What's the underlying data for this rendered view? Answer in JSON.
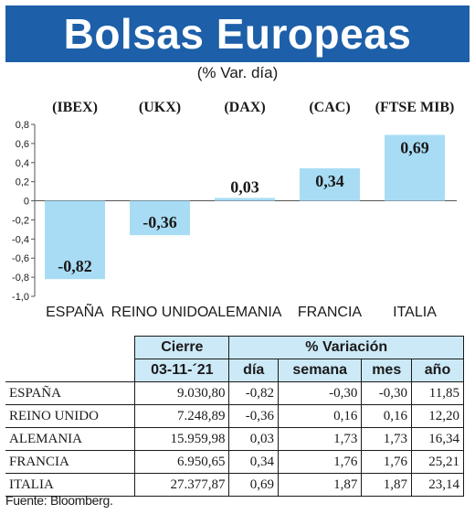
{
  "header": {
    "title": "Bolsas Europeas",
    "subtitle": "(% Var. día)"
  },
  "colors": {
    "banner": "#1d5fa8",
    "bar": "#a8dcf5",
    "table_header": "#cce9f7"
  },
  "chart_data": {
    "type": "bar",
    "title": "Bolsas Europeas",
    "subtitle": "(% Var. día)",
    "categories": [
      "ESPAÑA",
      "REINO UNIDO",
      "ALEMANIA",
      "FRANCIA",
      "ITALIA"
    ],
    "indices": [
      "(IBEX)",
      "(UKX)",
      "(DAX)",
      "(CAC)",
      "(FTSE MIB)"
    ],
    "values": [
      -0.82,
      -0.36,
      0.03,
      0.34,
      0.69
    ],
    "value_labels": [
      "-0,82",
      "-0,36",
      "0,03",
      "0,34",
      "0,69"
    ],
    "ylim": [
      -1.0,
      0.8
    ],
    "yticks": [
      0.8,
      0.6,
      0.4,
      0.2,
      0,
      -0.2,
      -0.4,
      -0.6,
      -0.8,
      -1.0
    ],
    "ytick_labels": [
      "0,8",
      "0,6",
      "0,4",
      "0,2",
      "0",
      "-0,2",
      "-0,4",
      "-0,6",
      "-0,8",
      "-1,0"
    ],
    "grid": false,
    "legend": "none"
  },
  "table": {
    "header_cierre": "Cierre",
    "header_variacion": "% Variación",
    "date": "03-11-´21",
    "sub_headers": [
      "día",
      "semana",
      "mes",
      "año"
    ],
    "rows": [
      {
        "country": "ESPAÑA",
        "cierre": "9.030,80",
        "dia": "-0,82",
        "semana": "-0,30",
        "mes": "-0,30",
        "ano": "11,85"
      },
      {
        "country": "REINO UNIDO",
        "cierre": "7.248,89",
        "dia": "-0,36",
        "semana": "0,16",
        "mes": "0,16",
        "ano": "12,20"
      },
      {
        "country": "ALEMANIA",
        "cierre": "15.959,98",
        "dia": "0,03",
        "semana": "1,73",
        "mes": "1,73",
        "ano": "16,34"
      },
      {
        "country": "FRANCIA",
        "cierre": "6.950,65",
        "dia": "0,34",
        "semana": "1,76",
        "mes": "1,76",
        "ano": "25,21"
      },
      {
        "country": "ITALIA",
        "cierre": "27.377,87",
        "dia": "0,69",
        "semana": "1,87",
        "mes": "1,87",
        "ano": "23,14"
      }
    ]
  },
  "footer": {
    "source": "Fuente: Bloomberg."
  }
}
